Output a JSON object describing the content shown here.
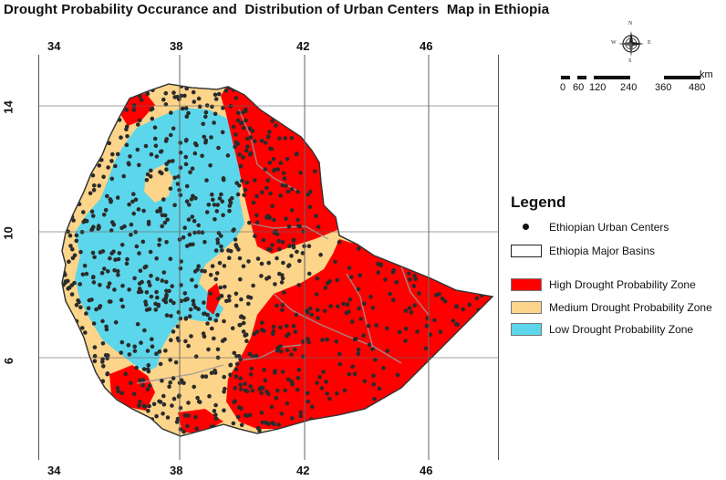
{
  "title": "Drought Probability Occurance and  Distribution of Urban Centers  Map in Ethiopia",
  "longitude_labels_top": [
    "34",
    "38",
    "42",
    "46"
  ],
  "longitude_labels_bottom": [
    "34",
    "38",
    "42",
    "46"
  ],
  "latitude_labels": [
    "14",
    "10",
    "6"
  ],
  "compass": {
    "north": "N",
    "south": "S",
    "west": "W",
    "east": "E"
  },
  "scale": {
    "unit": "km",
    "ticks": [
      "0",
      "60",
      "120",
      "240",
      "360",
      "480"
    ]
  },
  "legend": {
    "title": "Legend",
    "items": [
      {
        "label": "Ethiopian Urban Centers",
        "symbol": "point"
      },
      {
        "label": "Ethiopia Major Basins",
        "symbol": "outline"
      },
      {
        "label": "High Drought Probability Zone",
        "color": "#ff0000"
      },
      {
        "label": "Medium Drought Probability Zone",
        "color": "#fcd48a"
      },
      {
        "label": "Low Drought Probability Zone",
        "color": "#5cd6ea"
      }
    ]
  },
  "colors": {
    "high": "#ff0000",
    "medium": "#fcd48a",
    "low": "#5cd6ea",
    "urban": "#2b2b2b",
    "basin": "#9a9a9a"
  }
}
